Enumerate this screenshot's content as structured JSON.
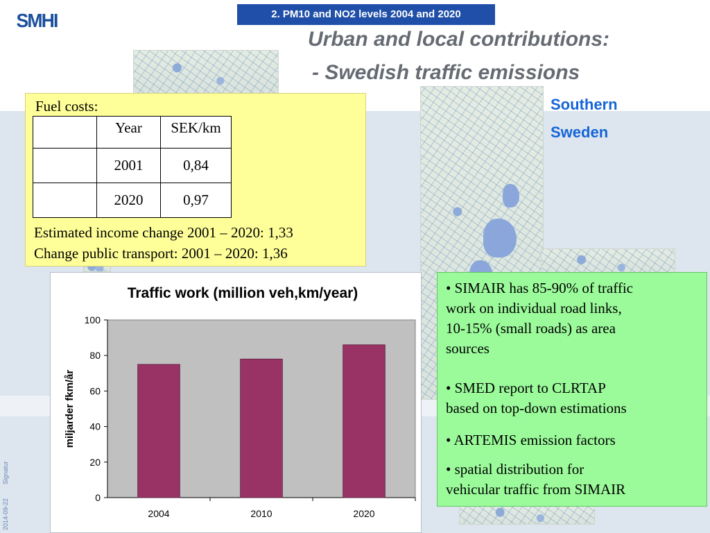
{
  "logo": "SMHI",
  "header": {
    "badge": "2. PM10 and NO2 levels 2004 and 2020"
  },
  "title": {
    "line1": "Urban and local contributions:",
    "line2": "- Swedish traffic emissions"
  },
  "region": {
    "line1": "Southern",
    "line2": "Sweden"
  },
  "fuel": {
    "label": "Fuel costs:",
    "headers": [
      "",
      "Year",
      "SEK/km"
    ],
    "rows": [
      [
        "",
        "2001",
        "0,84"
      ],
      [
        "",
        "2020",
        "0,97"
      ]
    ],
    "note1": "Estimated income change 2001 – 2020: 1,33",
    "note2": "Change public transport: 2001 – 2020: 1,36"
  },
  "chart_data": {
    "type": "bar",
    "title": "Traffic work (million veh,km/year)",
    "xlabel": "",
    "ylabel": "miljarder fkm/år",
    "categories": [
      "2004",
      "2010",
      "2020"
    ],
    "values": [
      75,
      78,
      86
    ],
    "ylim": [
      0,
      100
    ],
    "yticks": [
      0,
      20,
      40,
      60,
      80,
      100
    ],
    "grid": false,
    "legend": "none",
    "bar_color": "#993366",
    "plot_bg": "#c0c0c0"
  },
  "bullets": [
    [
      "• SIMAIR has 85-90% of traffic",
      "work on individual road links,",
      "10-15% (small roads) as area",
      "sources"
    ],
    [
      "• SMED report to CLRTAP",
      "based on top-down estimations"
    ],
    [
      "• ARTEMIS emission factors"
    ],
    [
      "• spatial distribution for",
      "vehicular traffic from SIMAIR"
    ]
  ],
  "footer": {
    "date": "2014-09-22",
    "signature": "Signatur"
  },
  "colors": {
    "header_bg": "#1f4fa8",
    "title": "#666b73",
    "region": "#1565d8",
    "yellow_box": "#ffff99",
    "green_box": "#9bfb9b"
  }
}
